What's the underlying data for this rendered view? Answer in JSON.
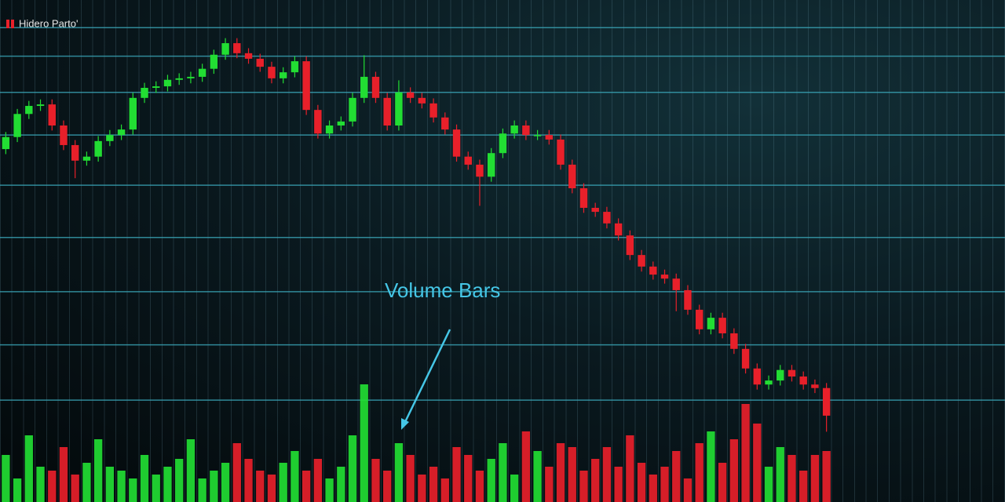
{
  "chart_data": {
    "type": "candlestick",
    "title": "Hidero Parto'",
    "annotation": "Volume Bars",
    "open": [
      70.3,
      72.7,
      77.3,
      78.9,
      79.2,
      75.0,
      71.1,
      68.0,
      68.8,
      71.9,
      73.1,
      74.2,
      80.5,
      82.5,
      82.8,
      84.1,
      84.4,
      84.7,
      86.3,
      89.1,
      91.4,
      89.4,
      88.3,
      86.7,
      84.4,
      85.6,
      87.8,
      78.1,
      73.4,
      75.0,
      75.8,
      80.5,
      84.7,
      80.5,
      75.0,
      81.6,
      80.5,
      79.4,
      76.6,
      74.2,
      68.8,
      67.2,
      64.8,
      69.5,
      73.4,
      75.0,
      73.1,
      73.1,
      72.2,
      67.2,
      62.5,
      58.6,
      57.8,
      55.5,
      53.1,
      49.2,
      46.9,
      45.3,
      44.5,
      42.2,
      38.3,
      34.4,
      36.7,
      33.6,
      30.5,
      26.6,
      23.4,
      24.2,
      26.3,
      25.0,
      23.4,
      22.7
    ],
    "high": [
      73.7,
      78.3,
      79.9,
      80.2,
      80.2,
      76.0,
      72.1,
      69.8,
      72.9,
      74.1,
      75.2,
      81.5,
      83.5,
      83.8,
      85.1,
      85.4,
      85.7,
      87.3,
      90.1,
      92.4,
      92.4,
      90.4,
      89.3,
      87.7,
      86.6,
      88.8,
      88.8,
      79.1,
      76.0,
      76.8,
      81.5,
      89.0,
      85.7,
      81.5,
      84.0,
      82.6,
      81.5,
      80.4,
      77.6,
      75.2,
      69.8,
      68.2,
      70.5,
      74.4,
      76.0,
      76.0,
      74.1,
      74.1,
      73.2,
      68.2,
      63.5,
      59.6,
      58.8,
      56.5,
      54.1,
      50.2,
      47.9,
      46.3,
      45.5,
      43.2,
      39.3,
      37.7,
      37.7,
      34.6,
      31.5,
      27.6,
      25.2,
      27.3,
      27.3,
      26.0,
      24.4,
      23.7
    ],
    "low": [
      69.3,
      71.7,
      76.3,
      77.9,
      74.0,
      70.1,
      64.5,
      67.0,
      67.8,
      70.9,
      72.1,
      73.2,
      79.5,
      81.5,
      81.8,
      83.1,
      83.4,
      83.7,
      85.3,
      88.1,
      88.4,
      87.3,
      85.7,
      83.4,
      83.4,
      84.6,
      77.1,
      72.4,
      72.4,
      74.0,
      74.8,
      79.5,
      79.5,
      74.0,
      74.0,
      79.5,
      78.4,
      75.6,
      73.2,
      67.8,
      66.2,
      59.0,
      63.8,
      68.5,
      72.4,
      72.1,
      72.1,
      71.2,
      66.2,
      61.5,
      57.6,
      56.8,
      54.5,
      52.1,
      48.2,
      45.9,
      44.3,
      43.5,
      38.0,
      37.3,
      33.4,
      33.4,
      32.6,
      29.5,
      25.6,
      22.4,
      22.4,
      23.2,
      24.0,
      22.4,
      21.7,
      14.0
    ],
    "close": [
      72.7,
      77.3,
      78.9,
      79.2,
      75.0,
      71.1,
      68.0,
      68.8,
      71.9,
      73.1,
      74.2,
      80.5,
      82.5,
      82.8,
      84.1,
      84.4,
      84.7,
      86.3,
      89.1,
      91.4,
      89.4,
      88.3,
      86.7,
      84.4,
      85.6,
      87.8,
      78.1,
      73.4,
      75.0,
      75.8,
      80.5,
      84.7,
      80.5,
      75.0,
      81.6,
      80.5,
      79.4,
      76.6,
      74.2,
      68.8,
      67.2,
      64.8,
      69.5,
      73.4,
      75.0,
      73.1,
      73.1,
      72.2,
      67.2,
      62.5,
      58.6,
      57.8,
      55.5,
      53.1,
      49.2,
      46.9,
      45.3,
      44.5,
      42.2,
      38.3,
      34.4,
      36.7,
      33.6,
      30.5,
      26.6,
      23.4,
      24.2,
      26.3,
      25.0,
      23.4,
      22.7,
      17.2
    ],
    "volume": [
      60,
      30,
      85,
      45,
      40,
      70,
      35,
      50,
      80,
      45,
      40,
      30,
      60,
      35,
      45,
      55,
      80,
      30,
      40,
      50,
      75,
      55,
      40,
      35,
      50,
      65,
      40,
      55,
      30,
      45,
      85,
      150,
      55,
      40,
      75,
      60,
      35,
      45,
      30,
      70,
      60,
      40,
      55,
      75,
      35,
      90,
      65,
      45,
      75,
      70,
      40,
      55,
      70,
      45,
      85,
      50,
      35,
      45,
      65,
      30,
      75,
      90,
      50,
      80,
      125,
      100,
      45,
      70,
      60,
      40,
      60,
      65
    ],
    "up_color": "#22dd33",
    "down_color": "#e8202a",
    "grid_color": "#3aa6b8",
    "ylim": [
      0,
      100
    ],
    "yticks": [
      94.5,
      88.8,
      81.6,
      73.1,
      63.1,
      52.7,
      41.9,
      31.3,
      20.3
    ],
    "y2lim": [
      0,
      640
    ],
    "grid": true
  }
}
